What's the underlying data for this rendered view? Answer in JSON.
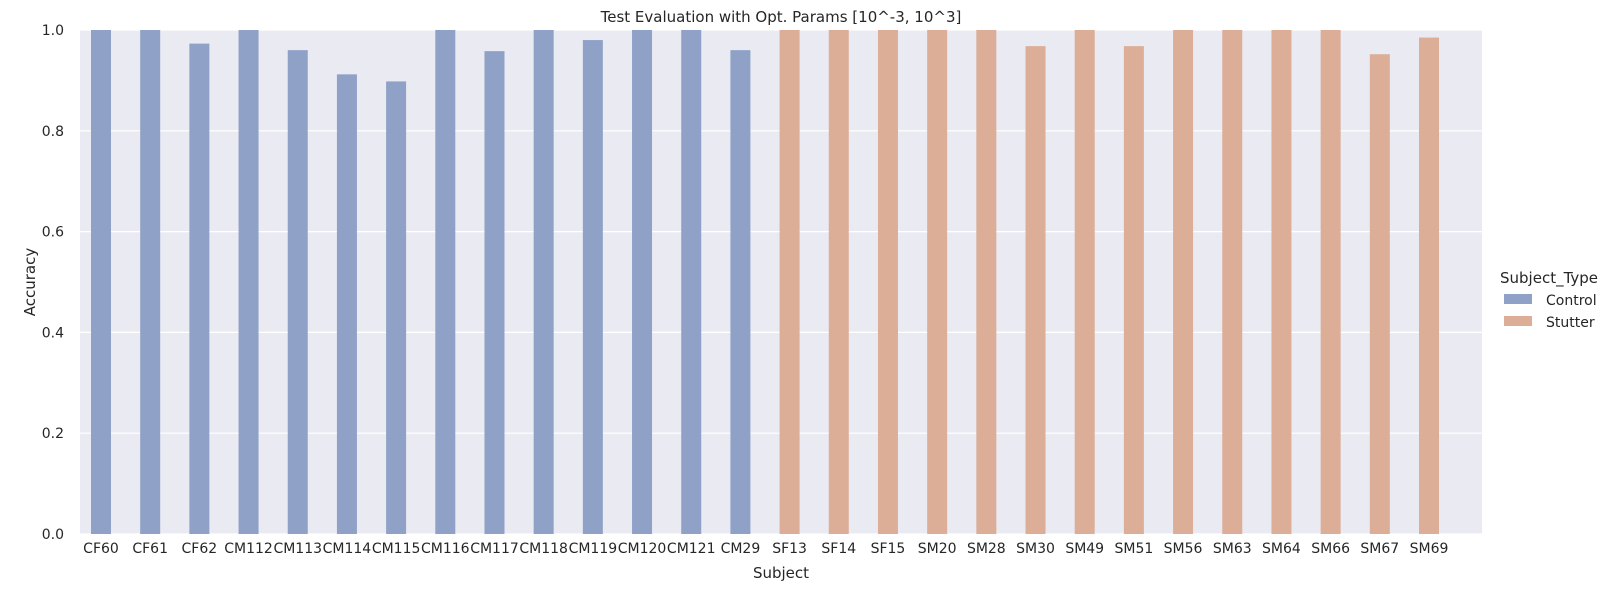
{
  "chart_data": {
    "type": "bar",
    "title": "Test Evaluation with Opt. Params [10^-3, 10^3]",
    "xlabel": "Subject",
    "ylabel": "Accuracy",
    "ylim": [
      0,
      1.0
    ],
    "yticks": [
      "0.0",
      "0.2",
      "0.4",
      "0.6",
      "0.8",
      "1.0"
    ],
    "grid": true,
    "legend": {
      "title": "Subject_Type",
      "placement": "right"
    },
    "categories": [
      "CF60",
      "CF61",
      "CF62",
      "CM112",
      "CM113",
      "CM114",
      "CM115",
      "CM116",
      "CM117",
      "CM118",
      "CM119",
      "CM120",
      "CM121",
      "CM29",
      "SF13",
      "SF14",
      "SF15",
      "SM20",
      "SM28",
      "SM30",
      "SM49",
      "SM51",
      "SM56",
      "SM63",
      "SM64",
      "SM66",
      "SM67",
      "SM69"
    ],
    "series": [
      {
        "name": "Control",
        "color": "#8fa1c7",
        "values": [
          1.0,
          1.0,
          0.973,
          1.0,
          0.96,
          0.912,
          0.898,
          1.0,
          0.958,
          1.0,
          0.98,
          1.0,
          1.0,
          0.96,
          null,
          null,
          null,
          null,
          null,
          null,
          null,
          null,
          null,
          null,
          null,
          null,
          null,
          null
        ]
      },
      {
        "name": "Stutter",
        "color": "#dcae98",
        "values": [
          null,
          null,
          null,
          null,
          null,
          null,
          null,
          null,
          null,
          null,
          null,
          null,
          null,
          null,
          1.0,
          1.0,
          1.0,
          1.0,
          1.0,
          0.968,
          1.0,
          0.968,
          1.0,
          1.0,
          1.0,
          1.0,
          0.952,
          0.985
        ]
      }
    ]
  }
}
